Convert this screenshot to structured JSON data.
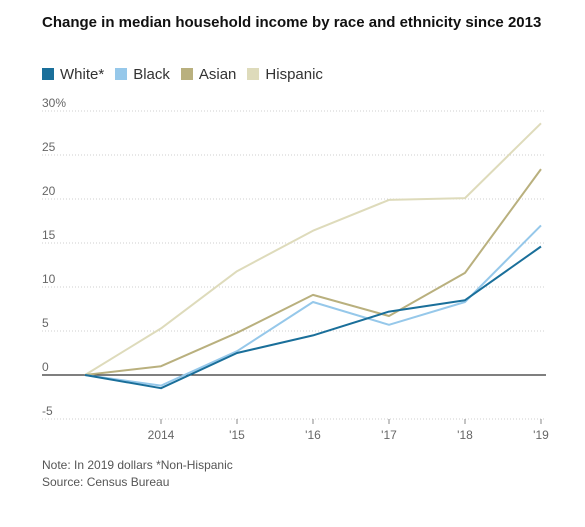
{
  "chart_data": {
    "type": "line",
    "title": "Change in median household income by race and ethnicity since 2013",
    "x": [
      2013,
      2014,
      2015,
      2016,
      2017,
      2018,
      2019
    ],
    "x_tick_labels": [
      "",
      "2014",
      "'15",
      "'16",
      "'17",
      "'18",
      "'19"
    ],
    "y_tick_labels": [
      "30%",
      "25",
      "20",
      "15",
      "10",
      "5",
      "0",
      "-5"
    ],
    "y_ticks": [
      30,
      25,
      20,
      15,
      10,
      5,
      0,
      -5
    ],
    "ylim": [
      -5,
      30
    ],
    "grid": true,
    "legend_position": "top-left",
    "series": [
      {
        "name": "White*",
        "color": "#1a6f9a",
        "values": [
          0,
          -1.5,
          2.5,
          4.5,
          7.2,
          8.5,
          14.6
        ]
      },
      {
        "name": "Black",
        "color": "#96c8ea",
        "values": [
          0,
          -1.2,
          2.7,
          8.3,
          5.7,
          8.3,
          17.0
        ]
      },
      {
        "name": "Asian",
        "color": "#b9b07e",
        "values": [
          0,
          1.0,
          4.8,
          9.1,
          6.7,
          11.6,
          23.4
        ]
      },
      {
        "name": "Hispanic",
        "color": "#dedbbb",
        "values": [
          0,
          5.3,
          11.8,
          16.4,
          19.9,
          20.1,
          28.6
        ]
      }
    ]
  },
  "notes": {
    "note": "Note: In 2019 dollars *Non-Hispanic",
    "source": "Source: Census Bureau"
  }
}
